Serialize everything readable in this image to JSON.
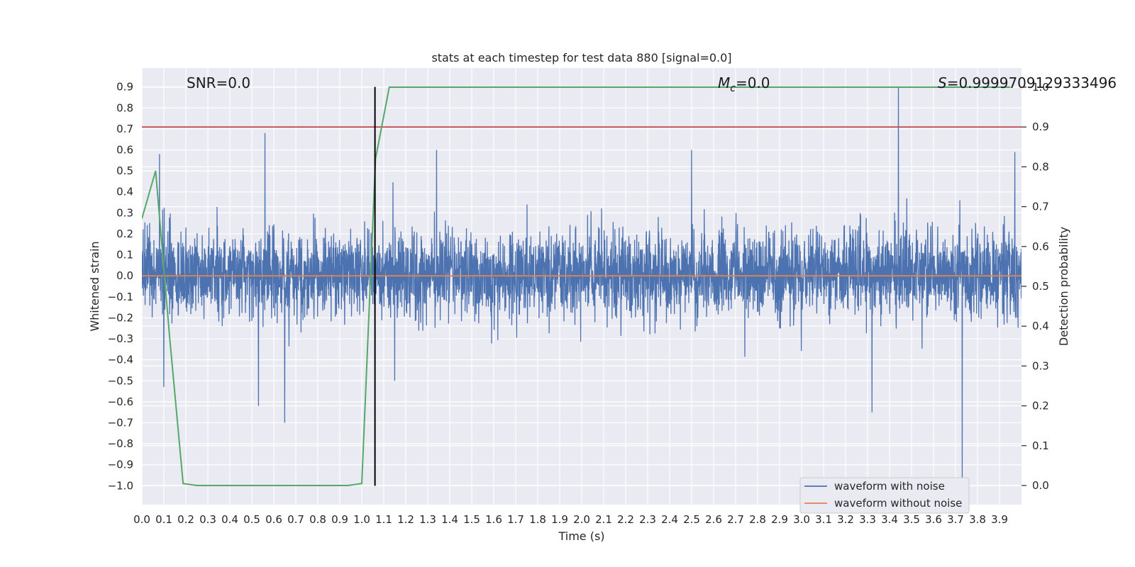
{
  "chart_data": {
    "type": "line",
    "title": "stats at each timestep for test data 880 [signal=0.0]",
    "xlabel": "Time (s)",
    "ylabel": "Whitened strain",
    "y2label": "Detection probability",
    "xlim": [
      0.0,
      4.0
    ],
    "ylim": [
      -1.09,
      0.99
    ],
    "y2lim": [
      -0.048,
      1.048
    ],
    "x_ticks": [
      "0.0",
      "0.1",
      "0.2",
      "0.3",
      "0.4",
      "0.5",
      "0.6",
      "0.7",
      "0.8",
      "0.9",
      "1.0",
      "1.1",
      "1.2",
      "1.3",
      "1.4",
      "1.5",
      "1.6",
      "1.7",
      "1.8",
      "1.9",
      "2.0",
      "2.1",
      "2.2",
      "2.3",
      "2.4",
      "2.5",
      "2.6",
      "2.7",
      "2.8",
      "2.9",
      "3.0",
      "3.1",
      "3.2",
      "3.3",
      "3.4",
      "3.5",
      "3.6",
      "3.7",
      "3.8",
      "3.9"
    ],
    "y_ticks": [
      "0.9",
      "0.8",
      "0.7",
      "0.6",
      "0.5",
      "0.4",
      "0.3",
      "0.2",
      "0.1",
      "0.0",
      "−0.1",
      "−0.2",
      "−0.3",
      "−0.4",
      "−0.5",
      "−0.6",
      "−0.7",
      "−0.8",
      "−0.9",
      "−1.0"
    ],
    "y2_ticks": [
      "1.0",
      "0.9",
      "0.8",
      "0.7",
      "0.6",
      "0.5",
      "0.4",
      "0.3",
      "0.2",
      "0.1",
      "0.0"
    ],
    "grid": true,
    "legend_position": "lower-right",
    "annotations": {
      "snr": "SNR=0.0",
      "mc_symbol": "M",
      "mc_sub": "c",
      "mc_value": "=0.0",
      "s_symbol": "S",
      "s_value": "=0.9999709129333496"
    },
    "noisy_waveform": {
      "name": "waveform with noise",
      "color": "#4c72b0",
      "x_range": [
        0.0,
        4.0
      ],
      "typical_amplitude_range": [
        -0.35,
        0.4
      ],
      "peaks": [
        {
          "x": 0.08,
          "y": 0.58
        },
        {
          "x": 0.1,
          "y": -0.53
        },
        {
          "x": 0.53,
          "y": -0.62
        },
        {
          "x": 0.56,
          "y": 0.68
        },
        {
          "x": 0.65,
          "y": -0.7
        },
        {
          "x": 1.06,
          "y": 0.57
        },
        {
          "x": 1.15,
          "y": -0.5
        },
        {
          "x": 1.34,
          "y": 0.6
        },
        {
          "x": 2.5,
          "y": 0.6
        },
        {
          "x": 3.44,
          "y": 0.9
        },
        {
          "x": 3.32,
          "y": -0.65
        },
        {
          "x": 3.73,
          "y": -0.99
        },
        {
          "x": 3.72,
          "y": 0.36
        },
        {
          "x": 3.97,
          "y": 0.59
        }
      ]
    },
    "clean_waveform": {
      "name": "waveform without noise",
      "color": "#dd8452",
      "y": 0.0
    },
    "detection_probability": {
      "color": "#55a868",
      "x": [
        0.0,
        0.0625,
        0.125,
        0.1875,
        0.25,
        0.3125,
        0.375,
        0.4375,
        0.5,
        0.5625,
        0.625,
        0.6875,
        0.75,
        0.8125,
        0.875,
        0.9375,
        1.0,
        1.0625,
        1.125,
        1.5,
        2.0,
        2.5,
        3.0,
        3.5,
        3.95
      ],
      "y": [
        0.67,
        0.79,
        0.38,
        0.005,
        0.0,
        0.0,
        0.0,
        0.0,
        0.0,
        0.0,
        0.0,
        0.0,
        0.0,
        0.0,
        0.0,
        0.0,
        0.005,
        0.82,
        1.0,
        1.0,
        1.0,
        1.0,
        1.0,
        1.0,
        1.0
      ]
    },
    "threshold": {
      "color": "#c44e52",
      "y2": 0.9
    },
    "event_marker": {
      "color": "#000000",
      "x": 1.06,
      "y_range": [
        -1.0,
        0.9
      ]
    }
  }
}
